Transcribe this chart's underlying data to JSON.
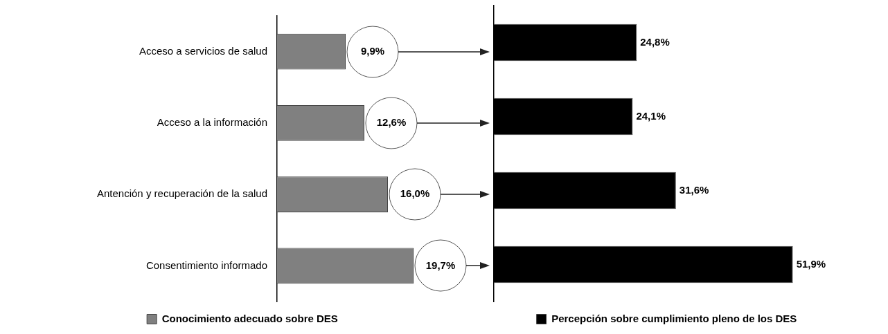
{
  "chart_data": [
    {
      "type": "bar",
      "orientation": "horizontal",
      "categories": [
        "Acceso a servicios de salud",
        "Acceso a la información",
        "Antención y recuperación de la salud",
        "Consentimiento informado"
      ],
      "series": [
        {
          "name": "Conocimiento adecuado sobre DES",
          "color": "#808080",
          "values": [
            9.9,
            12.6,
            16.0,
            19.7
          ],
          "value_labels": [
            "9,9%",
            "12,6%",
            "16,0%",
            "19,7%"
          ]
        }
      ],
      "legend": "bottom",
      "grid": false,
      "tick_labels": "y"
    },
    {
      "type": "bar",
      "orientation": "horizontal",
      "categories": [
        null,
        null,
        null,
        null
      ],
      "series": [
        {
          "name": "Percepción sobre cumplimiento pleno de los DES",
          "color": "#000000",
          "values": [
            24.8,
            24.1,
            31.6,
            51.9
          ],
          "value_labels": [
            "24,8%",
            "24,1%",
            "31,6%",
            "51,9%"
          ]
        }
      ],
      "legend": "bottom",
      "grid": false,
      "tick_labels": false
    }
  ]
}
